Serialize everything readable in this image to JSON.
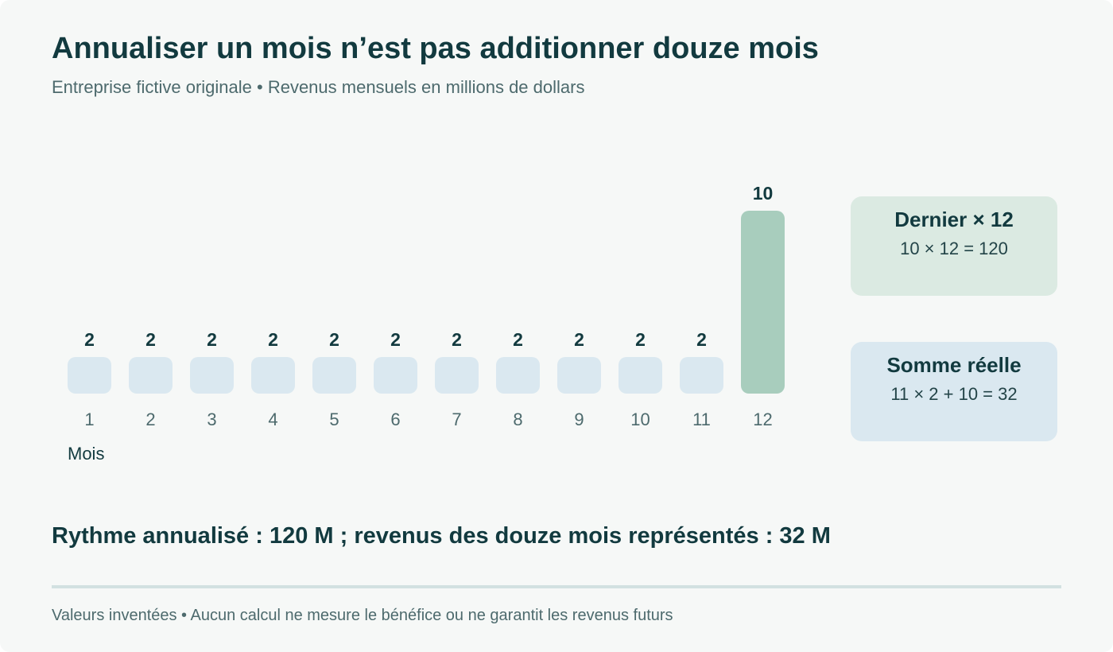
{
  "header": {
    "title": "Annualiser un mois n’est pas additionner douze mois",
    "subtitle": "Entreprise fictive originale • Revenus mensuels en millions de dollars"
  },
  "chart_data": {
    "type": "bar",
    "categories": [
      "1",
      "2",
      "3",
      "4",
      "5",
      "6",
      "7",
      "8",
      "9",
      "10",
      "11",
      "12"
    ],
    "values": [
      2,
      2,
      2,
      2,
      2,
      2,
      2,
      2,
      2,
      2,
      2,
      10
    ],
    "xlabel": "Mois",
    "ylabel": "",
    "ylim": [
      0,
      10
    ],
    "grid": false,
    "highlight_index": 11
  },
  "callouts": {
    "last_times_12": {
      "title": "Dernier × 12",
      "formula": "10 × 12 = 120"
    },
    "real_sum": {
      "title": "Somme réelle",
      "formula": "11 × 2 + 10 = 32"
    }
  },
  "summary": "Rythme annualisé : 120 M ; revenus des douze mois représentés : 32 M",
  "footnote": "Valeurs inventées • Aucun calcul ne mesure le bénéfice ou ne garantit les revenus futurs",
  "colors": {
    "bar_default": "#dae8f0",
    "bar_highlight": "#a8cdbd",
    "text_dark": "#123a3f",
    "text_muted": "#4d6a6d",
    "callout_green": "#dbeae2",
    "callout_blue": "#dae8f0"
  }
}
